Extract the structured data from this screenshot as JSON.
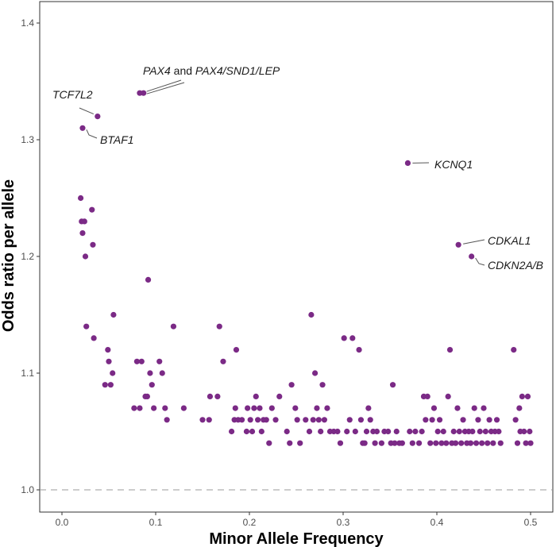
{
  "chart_data": {
    "type": "scatter",
    "xlabel": "Minor Allele Frequency",
    "ylabel": "Odds ratio per allele",
    "xlim": [
      -0.025,
      0.52
    ],
    "ylim": [
      0.98,
      1.41
    ],
    "x_ticks": [
      0.0,
      0.1,
      0.2,
      0.3,
      0.4,
      0.5
    ],
    "x_tick_labels": [
      "0.0",
      "0.1",
      "0.2",
      "0.3",
      "0.4",
      "0.5"
    ],
    "y_ticks": [
      1.0,
      1.1,
      1.2,
      1.3,
      1.4
    ],
    "y_tick_labels": [
      "1.0",
      "1.1",
      "1.2",
      "1.3",
      "1.4"
    ],
    "reference_line": 1.0,
    "point_color": "#7b2a86",
    "points": [
      [
        0.02,
        1.25
      ],
      [
        0.021,
        1.23
      ],
      [
        0.022,
        1.22
      ],
      [
        0.024,
        1.23
      ],
      [
        0.025,
        1.2
      ],
      [
        0.026,
        1.14
      ],
      [
        0.032,
        1.24
      ],
      [
        0.033,
        1.21
      ],
      [
        0.034,
        1.13
      ],
      [
        0.022,
        1.31
      ],
      [
        0.038,
        1.32
      ],
      [
        0.046,
        1.09
      ],
      [
        0.049,
        1.12
      ],
      [
        0.05,
        1.11
      ],
      [
        0.052,
        1.09
      ],
      [
        0.054,
        1.1
      ],
      [
        0.055,
        1.15
      ],
      [
        0.077,
        1.07
      ],
      [
        0.08,
        1.11
      ],
      [
        0.083,
        1.07
      ],
      [
        0.085,
        1.11
      ],
      [
        0.089,
        1.08
      ],
      [
        0.091,
        1.08
      ],
      [
        0.092,
        1.18
      ],
      [
        0.094,
        1.1
      ],
      [
        0.096,
        1.09
      ],
      [
        0.098,
        1.07
      ],
      [
        0.104,
        1.11
      ],
      [
        0.107,
        1.1
      ],
      [
        0.11,
        1.07
      ],
      [
        0.112,
        1.06
      ],
      [
        0.119,
        1.14
      ],
      [
        0.13,
        1.07
      ],
      [
        0.083,
        1.34
      ],
      [
        0.087,
        1.34
      ],
      [
        0.15,
        1.06
      ],
      [
        0.157,
        1.06
      ],
      [
        0.158,
        1.08
      ],
      [
        0.166,
        1.08
      ],
      [
        0.168,
        1.14
      ],
      [
        0.172,
        1.11
      ],
      [
        0.181,
        1.05
      ],
      [
        0.184,
        1.06
      ],
      [
        0.185,
        1.07
      ],
      [
        0.186,
        1.12
      ],
      [
        0.188,
        1.06
      ],
      [
        0.192,
        1.06
      ],
      [
        0.197,
        1.05
      ],
      [
        0.198,
        1.07
      ],
      [
        0.201,
        1.06
      ],
      [
        0.203,
        1.05
      ],
      [
        0.205,
        1.07
      ],
      [
        0.207,
        1.08
      ],
      [
        0.209,
        1.06
      ],
      [
        0.211,
        1.07
      ],
      [
        0.213,
        1.05
      ],
      [
        0.215,
        1.06
      ],
      [
        0.218,
        1.06
      ],
      [
        0.221,
        1.04
      ],
      [
        0.224,
        1.07
      ],
      [
        0.228,
        1.06
      ],
      [
        0.232,
        1.08
      ],
      [
        0.24,
        1.05
      ],
      [
        0.243,
        1.04
      ],
      [
        0.245,
        1.09
      ],
      [
        0.249,
        1.07
      ],
      [
        0.251,
        1.06
      ],
      [
        0.254,
        1.04
      ],
      [
        0.26,
        1.06
      ],
      [
        0.264,
        1.05
      ],
      [
        0.266,
        1.15
      ],
      [
        0.268,
        1.06
      ],
      [
        0.27,
        1.1
      ],
      [
        0.272,
        1.07
      ],
      [
        0.274,
        1.06
      ],
      [
        0.276,
        1.05
      ],
      [
        0.278,
        1.09
      ],
      [
        0.28,
        1.06
      ],
      [
        0.283,
        1.07
      ],
      [
        0.286,
        1.05
      ],
      [
        0.29,
        1.05
      ],
      [
        0.294,
        1.05
      ],
      [
        0.297,
        1.04
      ],
      [
        0.301,
        1.13
      ],
      [
        0.304,
        1.05
      ],
      [
        0.307,
        1.06
      ],
      [
        0.31,
        1.13
      ],
      [
        0.313,
        1.05
      ],
      [
        0.317,
        1.12
      ],
      [
        0.319,
        1.06
      ],
      [
        0.321,
        1.04
      ],
      [
        0.323,
        1.04
      ],
      [
        0.325,
        1.05
      ],
      [
        0.327,
        1.07
      ],
      [
        0.329,
        1.06
      ],
      [
        0.332,
        1.05
      ],
      [
        0.334,
        1.04
      ],
      [
        0.336,
        1.05
      ],
      [
        0.341,
        1.04
      ],
      [
        0.344,
        1.05
      ],
      [
        0.348,
        1.05
      ],
      [
        0.351,
        1.04
      ],
      [
        0.353,
        1.09
      ],
      [
        0.355,
        1.04
      ],
      [
        0.357,
        1.05
      ],
      [
        0.36,
        1.04
      ],
      [
        0.363,
        1.04
      ],
      [
        0.369,
        1.28
      ],
      [
        0.371,
        1.05
      ],
      [
        0.374,
        1.04
      ],
      [
        0.377,
        1.05
      ],
      [
        0.381,
        1.04
      ],
      [
        0.384,
        1.05
      ],
      [
        0.386,
        1.08
      ],
      [
        0.388,
        1.06
      ],
      [
        0.39,
        1.08
      ],
      [
        0.393,
        1.04
      ],
      [
        0.395,
        1.06
      ],
      [
        0.397,
        1.07
      ],
      [
        0.399,
        1.04
      ],
      [
        0.401,
        1.05
      ],
      [
        0.403,
        1.06
      ],
      [
        0.405,
        1.04
      ],
      [
        0.407,
        1.05
      ],
      [
        0.41,
        1.04
      ],
      [
        0.412,
        1.08
      ],
      [
        0.414,
        1.12
      ],
      [
        0.416,
        1.04
      ],
      [
        0.418,
        1.05
      ],
      [
        0.42,
        1.04
      ],
      [
        0.422,
        1.07
      ],
      [
        0.424,
        1.05
      ],
      [
        0.426,
        1.04
      ],
      [
        0.428,
        1.06
      ],
      [
        0.43,
        1.05
      ],
      [
        0.432,
        1.04
      ],
      [
        0.434,
        1.05
      ],
      [
        0.436,
        1.04
      ],
      [
        0.438,
        1.05
      ],
      [
        0.44,
        1.07
      ],
      [
        0.442,
        1.04
      ],
      [
        0.444,
        1.06
      ],
      [
        0.446,
        1.05
      ],
      [
        0.448,
        1.04
      ],
      [
        0.45,
        1.07
      ],
      [
        0.452,
        1.05
      ],
      [
        0.454,
        1.04
      ],
      [
        0.456,
        1.06
      ],
      [
        0.458,
        1.05
      ],
      [
        0.46,
        1.04
      ],
      [
        0.462,
        1.05
      ],
      [
        0.464,
        1.06
      ],
      [
        0.466,
        1.05
      ],
      [
        0.468,
        1.04
      ],
      [
        0.423,
        1.21
      ],
      [
        0.437,
        1.2
      ],
      [
        0.482,
        1.12
      ],
      [
        0.484,
        1.06
      ],
      [
        0.486,
        1.04
      ],
      [
        0.488,
        1.07
      ],
      [
        0.489,
        1.05
      ],
      [
        0.491,
        1.08
      ],
      [
        0.493,
        1.05
      ],
      [
        0.495,
        1.04
      ],
      [
        0.497,
        1.08
      ],
      [
        0.5,
        1.04
      ],
      [
        0.499,
        1.05
      ]
    ],
    "annotations": [
      {
        "label": "TCF7L2",
        "x": 0.038,
        "y": 1.32
      },
      {
        "label": "BTAF1",
        "x": 0.022,
        "y": 1.31
      },
      {
        "label_parts": [
          "PAX4",
          " and ",
          "PAX4/SND1/LEP"
        ],
        "x": 0.087,
        "y": 1.34
      },
      {
        "label": "KCNQ1",
        "x": 0.369,
        "y": 1.28
      },
      {
        "label": "CDKAL1",
        "x": 0.423,
        "y": 1.21
      },
      {
        "label": "CDKN2A/B",
        "x": 0.437,
        "y": 1.2
      }
    ]
  }
}
